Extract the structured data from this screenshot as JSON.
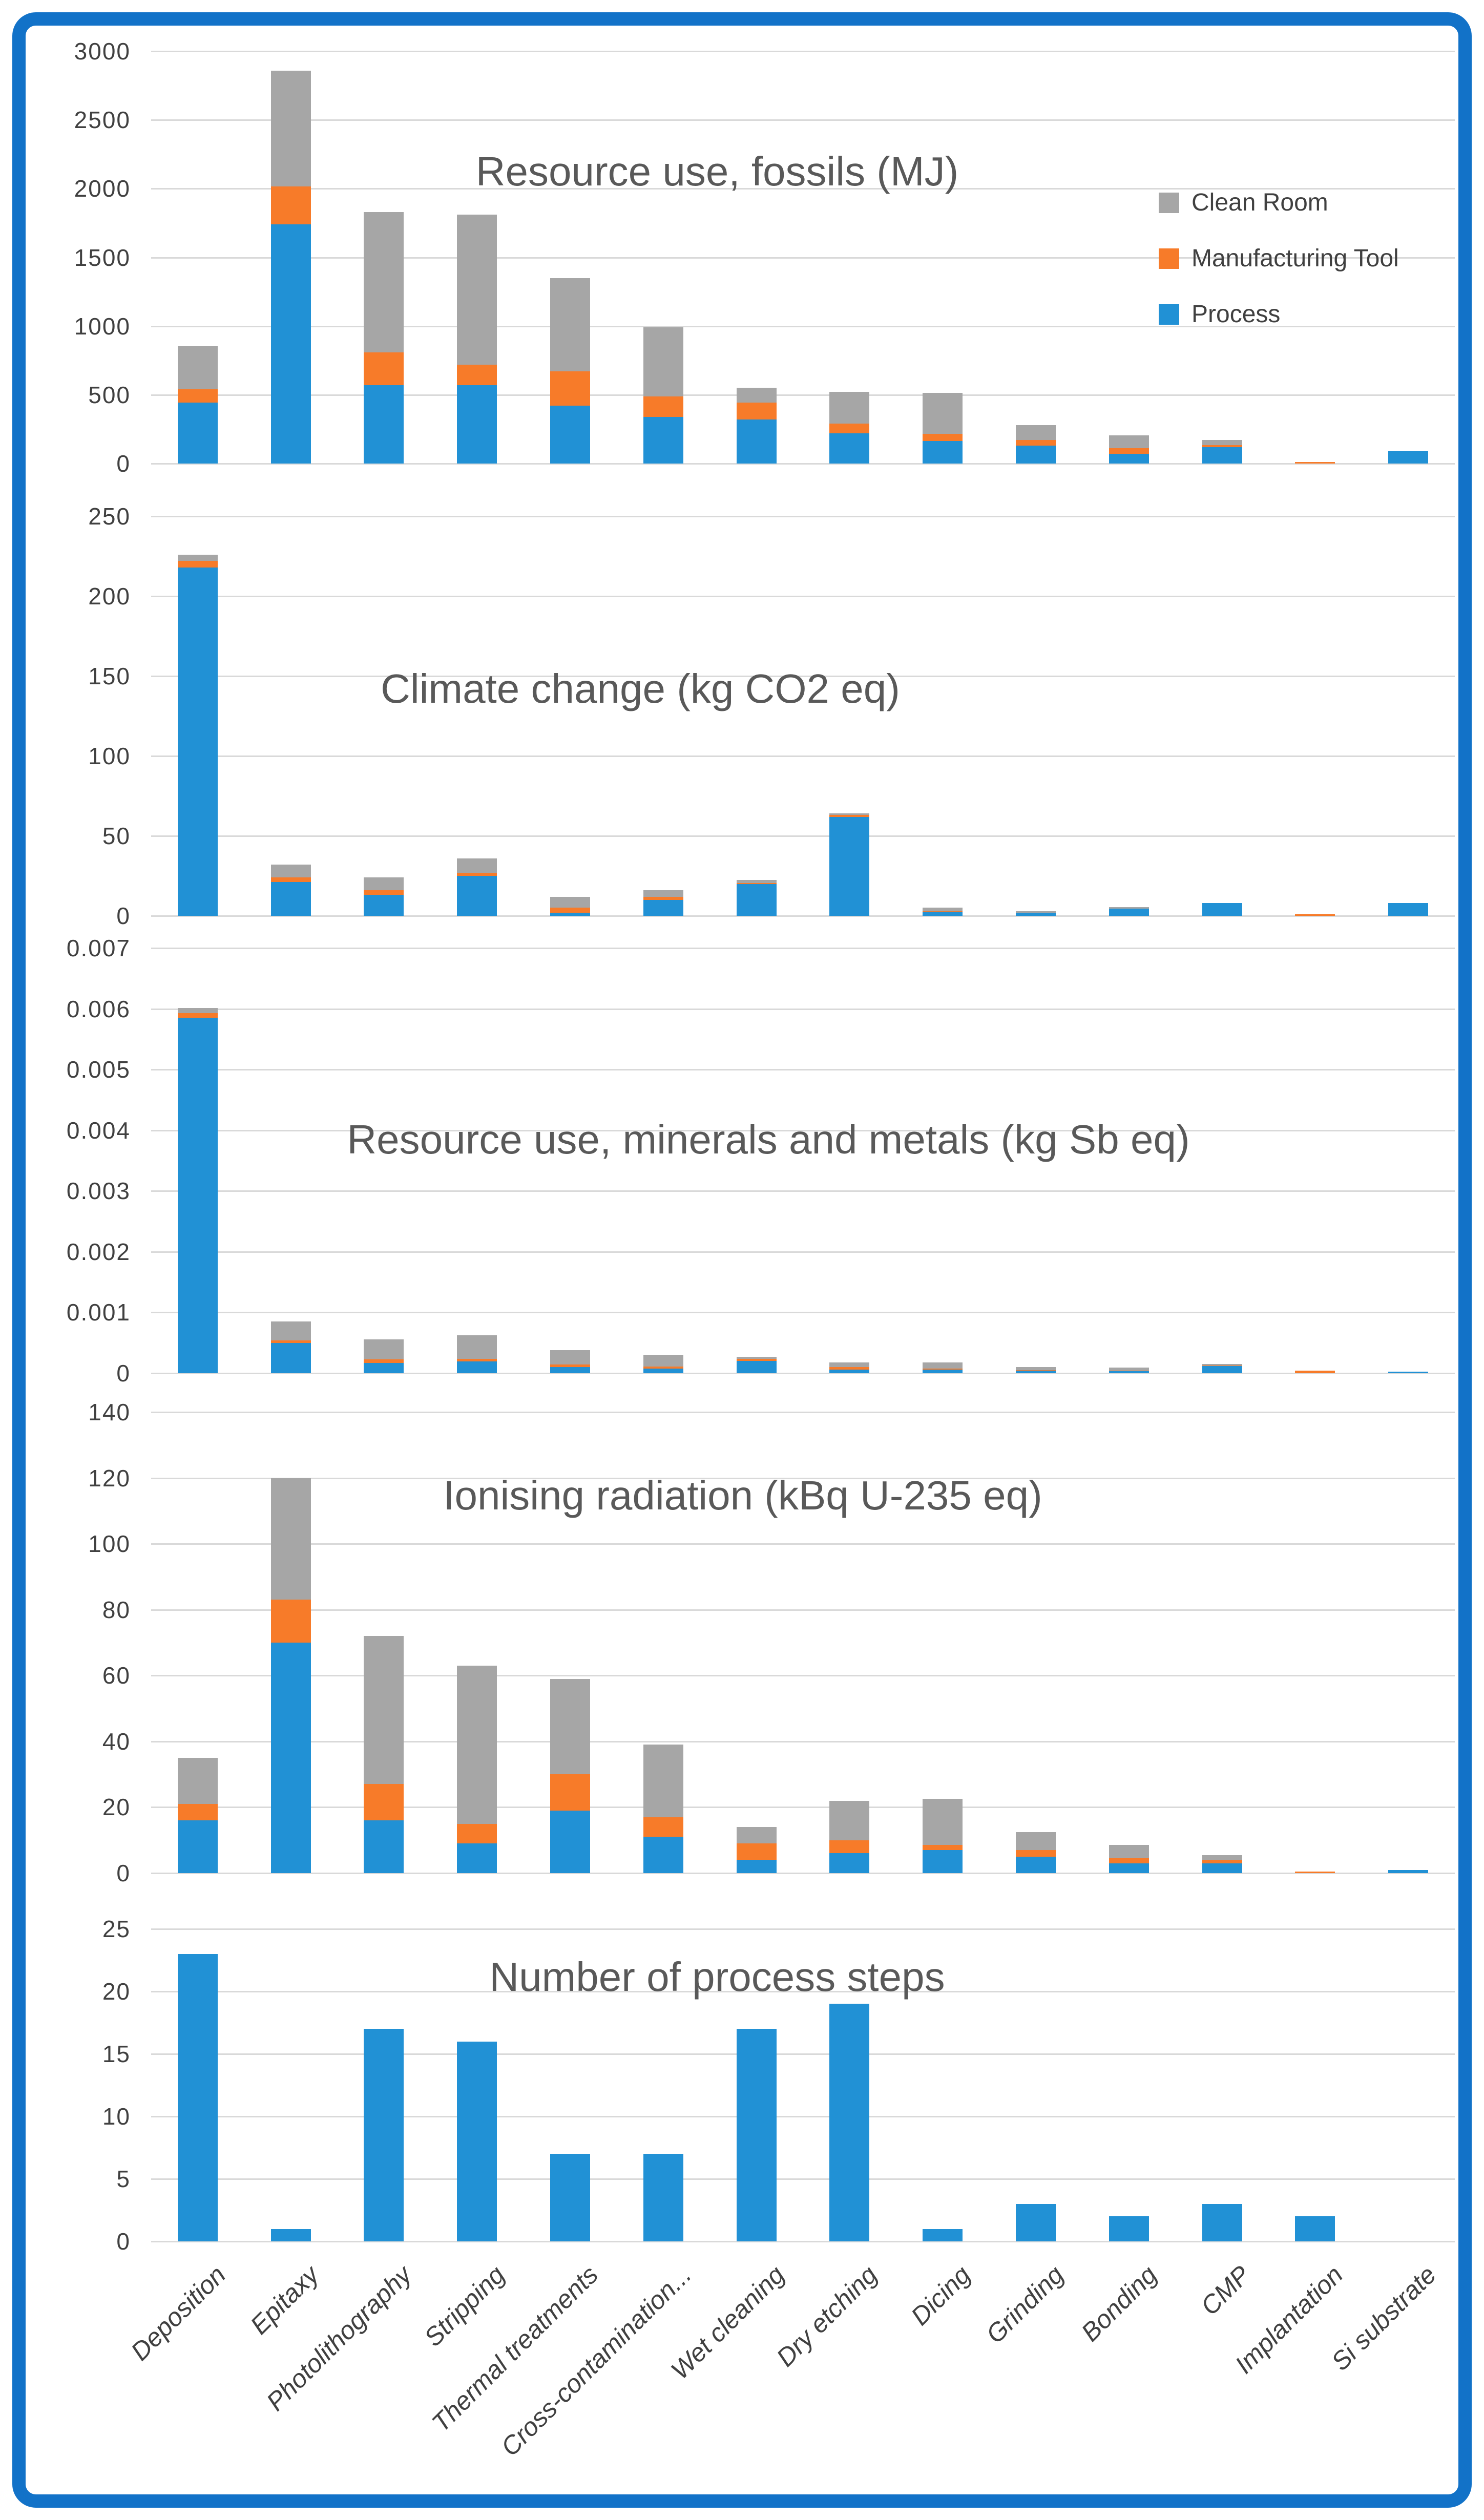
{
  "figure": {
    "border_color": "#1272C8",
    "background": "#ffffff"
  },
  "legend": {
    "items": [
      {
        "label": "Clean Room",
        "series": "clean_room",
        "color": "#A6A6A6"
      },
      {
        "label": "Manufacturing Tool",
        "series": "tool",
        "color": "#F77B29"
      },
      {
        "label": "Process",
        "series": "process",
        "color": "#2191D5"
      }
    ]
  },
  "chart_data": {
    "type": "bar",
    "stacked": true,
    "grid": true,
    "legend_position": "top-right-of-first-chart",
    "series_order": [
      "process",
      "tool",
      "clean_room"
    ],
    "series_names": {
      "process": "Process",
      "tool": "Manufacturing Tool",
      "clean_room": "Clean Room"
    },
    "colors": {
      "process": "#2191D5",
      "tool": "#F77B29",
      "clean_room": "#A6A6A6"
    },
    "categories": [
      "Deposition",
      "Epitaxy",
      "Photolithography",
      "Stripping",
      "Thermal treatments",
      "Cross-contamination...",
      "Wet cleaning",
      "Dry etching",
      "Dicing",
      "Grinding",
      "Bonding",
      "CMP",
      "Implantation",
      "Si substrate"
    ],
    "charts": [
      {
        "title": "Resource use, fossils (MJ)",
        "ylim": [
          0,
          3000
        ],
        "y_ticks": [
          "0",
          "500",
          "1000",
          "1500",
          "2000",
          "2500",
          "3000"
        ],
        "series": {
          "process": [
            445,
            1740,
            570,
            570,
            420,
            340,
            320,
            220,
            165,
            130,
            70,
            120,
            0,
            90
          ],
          "tool": [
            95,
            275,
            240,
            150,
            250,
            150,
            125,
            70,
            50,
            40,
            40,
            15,
            10,
            0
          ],
          "clean_room": [
            315,
            845,
            1020,
            1090,
            680,
            500,
            105,
            230,
            300,
            110,
            95,
            35,
            0,
            0
          ]
        }
      },
      {
        "title": "Climate change (kg CO2 eq)",
        "ylim": [
          0,
          250
        ],
        "y_ticks": [
          "0",
          "50",
          "100",
          "150",
          "200",
          "250"
        ],
        "series": {
          "process": [
            218,
            21,
            13,
            25,
            2,
            10,
            20,
            62,
            2.5,
            2,
            4.5,
            8,
            0,
            8
          ],
          "tool": [
            4,
            3,
            3,
            2,
            3,
            2,
            0.5,
            1,
            0.5,
            0,
            0,
            0,
            1,
            0
          ],
          "clean_room": [
            4,
            8,
            8,
            9,
            7,
            4,
            2,
            1,
            2,
            0.5,
            0.5,
            0,
            0,
            0
          ]
        }
      },
      {
        "title": "Resource use, minerals and metals (kg Sb eq)",
        "ylim": [
          0,
          0.007
        ],
        "y_ticks": [
          "0",
          "0.001",
          "0.002",
          "0.003",
          "0.004",
          "0.005",
          "0.006",
          "0.007"
        ],
        "series": {
          "process": [
            0.00585,
            0.0005,
            0.00017,
            0.00019,
            0.0001,
            8e-05,
            0.0002,
            6e-05,
            6e-05,
            4e-05,
            3e-05,
            0.00012,
            0,
            2e-05
          ],
          "tool": [
            8e-05,
            4e-05,
            6e-05,
            5e-05,
            4e-05,
            3e-05,
            4e-05,
            4e-05,
            2e-05,
            1e-05,
            1e-05,
            1e-05,
            4e-05,
            0
          ],
          "clean_room": [
            8e-05,
            0.00031,
            0.00033,
            0.00038,
            0.00024,
            0.00019,
            3e-05,
            8e-05,
            0.0001,
            5e-05,
            5e-05,
            1e-05,
            0,
            0
          ]
        }
      },
      {
        "title": "Ionising radiation (kBq U-235 eq)",
        "ylim": [
          0,
          140
        ],
        "y_ticks": [
          "0",
          "20",
          "40",
          "60",
          "80",
          "100",
          "120",
          "140"
        ],
        "series": {
          "process": [
            16,
            70,
            16,
            9,
            19,
            11,
            4,
            6,
            7,
            5,
            3,
            3,
            0,
            1
          ],
          "tool": [
            5,
            13,
            11,
            6,
            11,
            6,
            5,
            4,
            1.5,
            2,
            1.5,
            1,
            0.3,
            0
          ],
          "clean_room": [
            14,
            37,
            45,
            48,
            29,
            22,
            5,
            12,
            14,
            5.5,
            4,
            1.5,
            0,
            0
          ]
        }
      },
      {
        "title": "Number of process steps",
        "ylim": [
          0,
          25
        ],
        "y_ticks": [
          "0",
          "5",
          "10",
          "15",
          "20",
          "25"
        ],
        "series": {
          "process": [
            23,
            1,
            17,
            16,
            7,
            7,
            17,
            19,
            1,
            3,
            2,
            3,
            2,
            0
          ],
          "tool": [
            0,
            0,
            0,
            0,
            0,
            0,
            0,
            0,
            0,
            0,
            0,
            0,
            0,
            0
          ],
          "clean_room": [
            0,
            0,
            0,
            0,
            0,
            0,
            0,
            0,
            0,
            0,
            0,
            0,
            0,
            0
          ]
        }
      }
    ]
  }
}
